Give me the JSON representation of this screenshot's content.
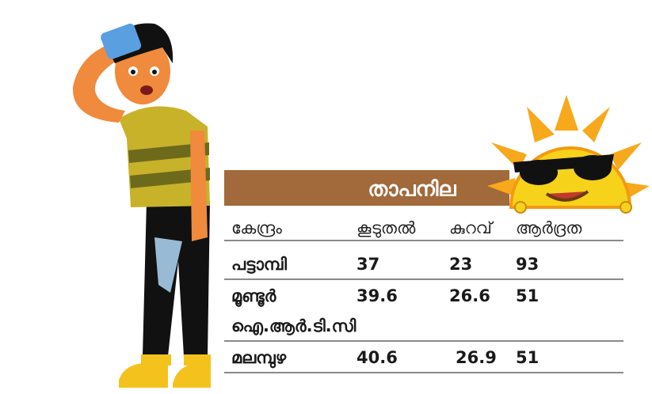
{
  "table": {
    "title": "താപനില",
    "header": [
      "കേന്ദ്രം",
      "കൂടുതൽ",
      "കുറവ്",
      "ആർദ്രത"
    ],
    "rows": [
      {
        "name": [
          "പട്ടാമ്പി"
        ],
        "values": [
          37,
          23,
          93
        ]
      },
      {
        "name": [
          "മൂണ്ടൂർ",
          "ഐ.ആർ.ടി.സി"
        ],
        "values": [
          39.6,
          26.6,
          51
        ]
      },
      {
        "name": [
          "മലമ്പുഴ"
        ],
        "values": [
          40.6,
          26.9,
          51
        ]
      }
    ]
  }
}
